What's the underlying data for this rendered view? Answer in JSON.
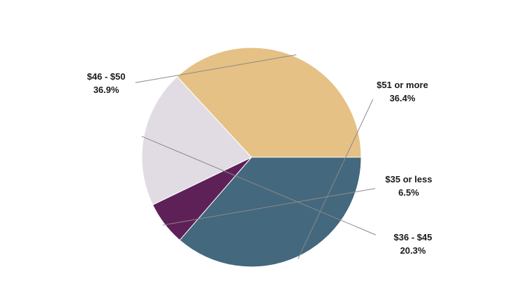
{
  "chart_data": {
    "type": "pie",
    "title": "",
    "slices": [
      {
        "label": "$51 or more",
        "value": 36.4,
        "value_label": "36.4%",
        "color": "#44687d"
      },
      {
        "label": "$35 or less",
        "value": 6.5,
        "value_label": "6.5%",
        "color": "#5e2157"
      },
      {
        "label": "$36 - $45",
        "value": 20.3,
        "value_label": "20.3%",
        "color": "#e1dce3"
      },
      {
        "label": "$46 - $50",
        "value": 36.9,
        "value_label": "36.9%",
        "color": "#e5c185"
      }
    ],
    "start_angle_deg": 0,
    "direction": "clockwise",
    "legend": "none",
    "labels_outside": true
  }
}
